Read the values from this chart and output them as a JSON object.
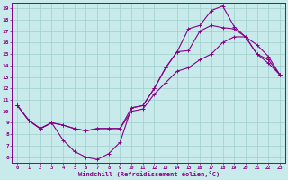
{
  "bg_color": "#c8eaea",
  "grid_color": "#9ecece",
  "line_color": "#880088",
  "xlabel": "Windchill (Refroidissement éolien,°C)",
  "xlim": [
    -0.5,
    23.5
  ],
  "ylim": [
    5.5,
    19.5
  ],
  "xticks": [
    0,
    1,
    2,
    3,
    4,
    5,
    6,
    7,
    8,
    9,
    10,
    11,
    12,
    13,
    14,
    15,
    16,
    17,
    18,
    19,
    20,
    21,
    22,
    23
  ],
  "yticks": [
    6,
    7,
    8,
    9,
    10,
    11,
    12,
    13,
    14,
    15,
    16,
    17,
    18,
    19
  ],
  "line1_x": [
    0,
    1,
    2,
    3,
    4,
    5,
    6,
    7,
    8,
    9,
    10,
    11,
    12,
    13,
    14,
    15,
    16,
    17,
    18,
    19,
    20,
    21,
    22,
    23
  ],
  "line1_y": [
    10.5,
    9.2,
    8.5,
    9.0,
    7.5,
    6.5,
    6.0,
    5.8,
    6.3,
    7.3,
    10.3,
    10.5,
    12.0,
    13.8,
    15.2,
    17.2,
    17.5,
    18.8,
    19.2,
    17.4,
    16.5,
    15.0,
    14.2,
    13.2
  ],
  "line2_x": [
    0,
    1,
    2,
    3,
    4,
    5,
    6,
    7,
    8,
    9,
    10,
    11,
    12,
    13,
    14,
    15,
    16,
    17,
    18,
    19,
    20,
    21,
    22,
    23
  ],
  "line2_y": [
    10.5,
    9.2,
    8.5,
    9.0,
    8.8,
    8.5,
    8.3,
    8.5,
    8.5,
    8.5,
    10.3,
    10.5,
    12.0,
    13.8,
    15.2,
    15.3,
    17.0,
    17.5,
    17.3,
    17.2,
    16.5,
    15.0,
    14.5,
    13.2
  ],
  "line3_x": [
    0,
    1,
    2,
    3,
    4,
    5,
    6,
    7,
    8,
    9,
    10,
    11,
    12,
    13,
    14,
    15,
    16,
    17,
    18,
    19,
    20,
    21,
    22,
    23
  ],
  "line3_y": [
    10.5,
    9.2,
    8.5,
    9.0,
    8.8,
    8.5,
    8.3,
    8.5,
    8.5,
    8.5,
    10.0,
    10.2,
    11.5,
    12.5,
    13.5,
    13.8,
    14.5,
    15.0,
    16.0,
    16.5,
    16.5,
    15.8,
    14.8,
    13.2
  ]
}
